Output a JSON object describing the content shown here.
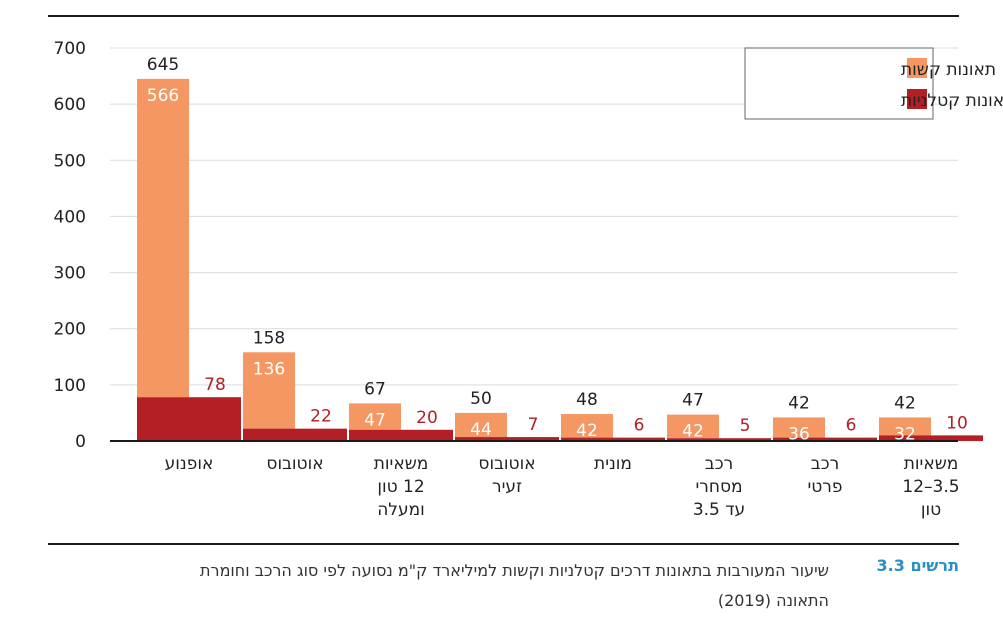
{
  "chart_data": {
    "type": "bar",
    "ylim": [
      0,
      700
    ],
    "yticks": [
      0,
      100,
      200,
      300,
      400,
      500,
      600,
      700
    ],
    "grid": true,
    "legend_position": "top-right",
    "categories": [
      [
        "אופנוע"
      ],
      [
        "אוטובוס"
      ],
      [
        "משאיות",
        "12 טון",
        "ומעלה"
      ],
      [
        "אוטובוס",
        "זעיר"
      ],
      [
        "מונית"
      ],
      [
        "רכב",
        "מסחרי",
        "עד 3.5"
      ],
      [
        "רכב",
        "פרטי"
      ],
      [
        "משאיות",
        "3.5–12",
        "טון"
      ]
    ],
    "series": [
      {
        "name": "תאונות קשות",
        "values": [
          566,
          136,
          47,
          44,
          42,
          42,
          36,
          32
        ],
        "color": "#f59762"
      },
      {
        "name": "תאונות קטלניות",
        "values": [
          78,
          22,
          20,
          7,
          6,
          5,
          6,
          10
        ],
        "color": "#b31f24"
      }
    ],
    "totals": [
      645,
      158,
      67,
      50,
      48,
      47,
      42,
      42
    ]
  },
  "caption": {
    "figure_number": "תרשים 3.3",
    "text": "שיעור המעורבות בתאונות דרכים קטלניות וקשות למיליארד ק\"מ נסועה לפי סוג הרכב וחומרת התאונה (2019)"
  },
  "colors": {
    "grid": "#dcdcdc",
    "axis": "#1a1a1a",
    "text": "#222222",
    "fatal_label": "#b31f24",
    "caption_accent": "#2a8fc7"
  }
}
